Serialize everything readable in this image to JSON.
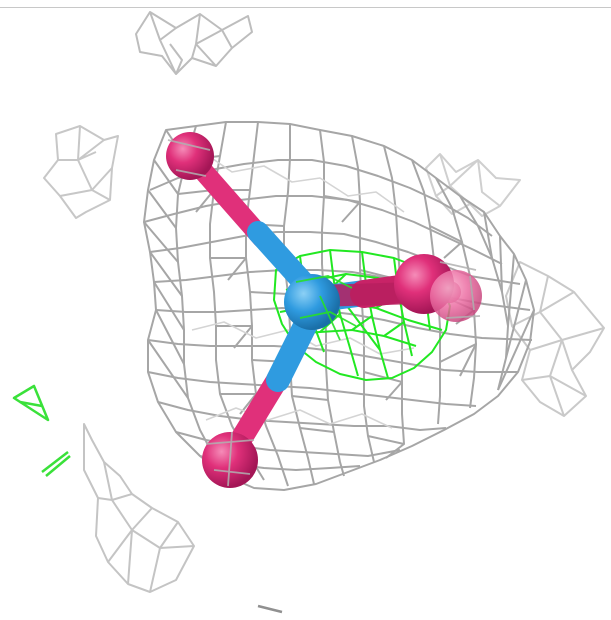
{
  "scene": {
    "kind": "electron-density-map",
    "background": "#ffffff",
    "colors": {
      "mesh_main": "#9a9a9a",
      "mesh_light": "#cfcfcf",
      "mesh_difference": "#1ee81e",
      "atom_oxygen": "#e0307a",
      "atom_oxygen_highlight": "#f07cad",
      "atom_central": "#2f9be0",
      "atom_central_highlight": "#7cc6f0"
    },
    "molecule": {
      "central_atom": "tetrahedral-center",
      "bonded_atoms": 4
    }
  }
}
